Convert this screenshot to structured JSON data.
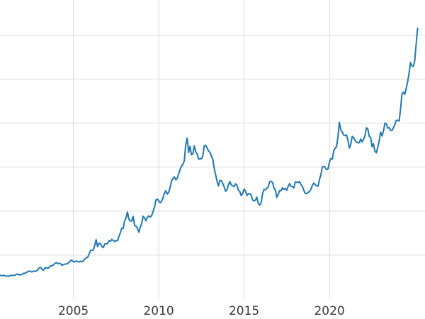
{
  "chart_data": {
    "type": "line",
    "title": "",
    "xlabel": "",
    "ylabel": "",
    "x_tick_positions": [
      2005,
      2010,
      2015,
      2020
    ],
    "x_tick_labels": [
      "2005",
      "2010",
      "2015",
      "2020"
    ],
    "xlim": [
      2000.7,
      2025.6
    ],
    "ylim": [
      0,
      3400
    ],
    "y_gridline_step": 500,
    "grid": true,
    "legend": false,
    "line_color": "#1f77b4",
    "grid_color": "#dcdcdc",
    "tick_label_color": "#3a3a3a",
    "background": "#ffffff",
    "series": [
      {
        "x_start": 2000.5833,
        "x_step": 0.0833333,
        "values": [
          274,
          273,
          270,
          266,
          272,
          265,
          262,
          263,
          260,
          272,
          270,
          268,
          272,
          284,
          283,
          276,
          276,
          281,
          295,
          294,
          303,
          314,
          321,
          313,
          310,
          319,
          317,
          319,
          333,
          356,
          359,
          340,
          328,
          355,
          356,
          351,
          360,
          379,
          379,
          389,
          407,
          414,
          405,
          407,
          404,
          384,
          392,
          398,
          400,
          405,
          420,
          439,
          442,
          424,
          423,
          434,
          429,
          422,
          431,
          424,
          437,
          456,
          470,
          476,
          510,
          550,
          555,
          557,
          611,
          676,
          596,
          634,
          632,
          598,
          586,
          627,
          630,
          631,
          665,
          655,
          680,
          667,
          655,
          665,
          665,
          713,
          755,
          806,
          803,
          890,
          922,
          990,
          910,
          889,
          889,
          940,
          839,
          829,
          807,
          761,
          816,
          859,
          943,
          924,
          890,
          928,
          946,
          934,
          949,
          997,
          1043,
          1127,
          1135,
          1118,
          1095,
          1113,
          1149,
          1205,
          1233,
          1193,
          1216,
          1271,
          1342,
          1370,
          1390,
          1356,
          1373,
          1424,
          1473,
          1512,
          1529,
          1573,
          1756,
          1830,
          1665,
          1739,
          1640,
          1652,
          1743,
          1674,
          1650,
          1591,
          1598,
          1594,
          1626,
          1744,
          1747,
          1721,
          1684,
          1671,
          1628,
          1593,
          1487,
          1414,
          1343,
          1287,
          1347,
          1348,
          1316,
          1276,
          1225,
          1244,
          1301,
          1336,
          1299,
          1288,
          1279,
          1311,
          1296,
          1238,
          1222,
          1176,
          1201,
          1251,
          1227,
          1178,
          1198,
          1199,
          1181,
          1128,
          1117,
          1124,
          1159,
          1086,
          1068,
          1097,
          1200,
          1246,
          1242,
          1260,
          1276,
          1337,
          1340,
          1326,
          1266,
          1238,
          1157,
          1192,
          1234,
          1231,
          1266,
          1246,
          1260,
          1237,
          1283,
          1314,
          1280,
          1282,
          1264,
          1331,
          1330,
          1325,
          1335,
          1303,
          1282,
          1238,
          1201,
          1198,
          1215,
          1221,
          1250,
          1292,
          1320,
          1301,
          1286,
          1284,
          1359,
          1413,
          1500,
          1511,
          1495,
          1471,
          1479,
          1561,
          1597,
          1592,
          1683,
          1716,
          1732,
          1843,
          2010,
          1922,
          1900,
          1866,
          1858,
          1867,
          1808,
          1718,
          1762,
          1850,
          1835,
          1807,
          1784,
          1777,
          1777,
          1820,
          1787,
          1817,
          1856,
          1948,
          1934,
          1850,
          1836,
          1732,
          1765,
          1681,
          1664,
          1725,
          1797,
          1898,
          1855,
          1913,
          2000,
          1992,
          1943,
          1951,
          1918,
          1916,
          1947,
          1984,
          2033,
          2034,
          2025,
          2160,
          2335,
          2351,
          2327,
          2398,
          2470,
          2568,
          2690,
          2651,
          2644,
          2709,
          2897,
          3080
        ]
      }
    ]
  }
}
